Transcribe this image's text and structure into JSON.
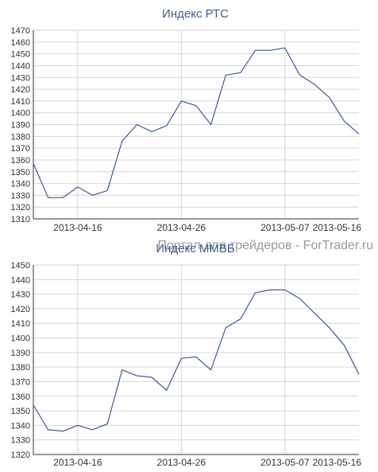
{
  "watermark": "Портал для трейдеров - ForTrader.ru",
  "chart_data": [
    {
      "type": "line",
      "title": "Индекс РТС",
      "ylim": [
        1310,
        1470
      ],
      "yticks": [
        1310,
        1320,
        1330,
        1340,
        1350,
        1360,
        1370,
        1380,
        1390,
        1400,
        1410,
        1420,
        1430,
        1440,
        1450,
        1460,
        1470
      ],
      "xticklabels": [
        "2013-04-16",
        "2013-04-26",
        "2013-05-07",
        "2013-05-16"
      ],
      "grid": true,
      "color": "#3f5a93",
      "values": [
        1357,
        1328,
        1328,
        1337,
        1330,
        1334,
        1376,
        1390,
        1384,
        1389,
        1410,
        1406,
        1390,
        1432,
        1434,
        1453,
        1453,
        1455,
        1432,
        1424,
        1413,
        1393,
        1382
      ]
    },
    {
      "type": "line",
      "title": "Индекс ММВБ",
      "ylim": [
        1320,
        1450
      ],
      "yticks": [
        1320,
        1330,
        1340,
        1350,
        1360,
        1370,
        1380,
        1390,
        1400,
        1410,
        1420,
        1430,
        1440,
        1450
      ],
      "xticklabels": [
        "2013-04-16",
        "2013-04-26",
        "2013-05-07",
        "2013-05-16"
      ],
      "grid": true,
      "color": "#3f5a93",
      "values": [
        1354,
        1337,
        1336,
        1340,
        1337,
        1341,
        1378,
        1374,
        1373,
        1364,
        1386,
        1387,
        1378,
        1407,
        1413,
        1431,
        1433,
        1433,
        1427,
        1417,
        1407,
        1395,
        1375
      ]
    }
  ]
}
